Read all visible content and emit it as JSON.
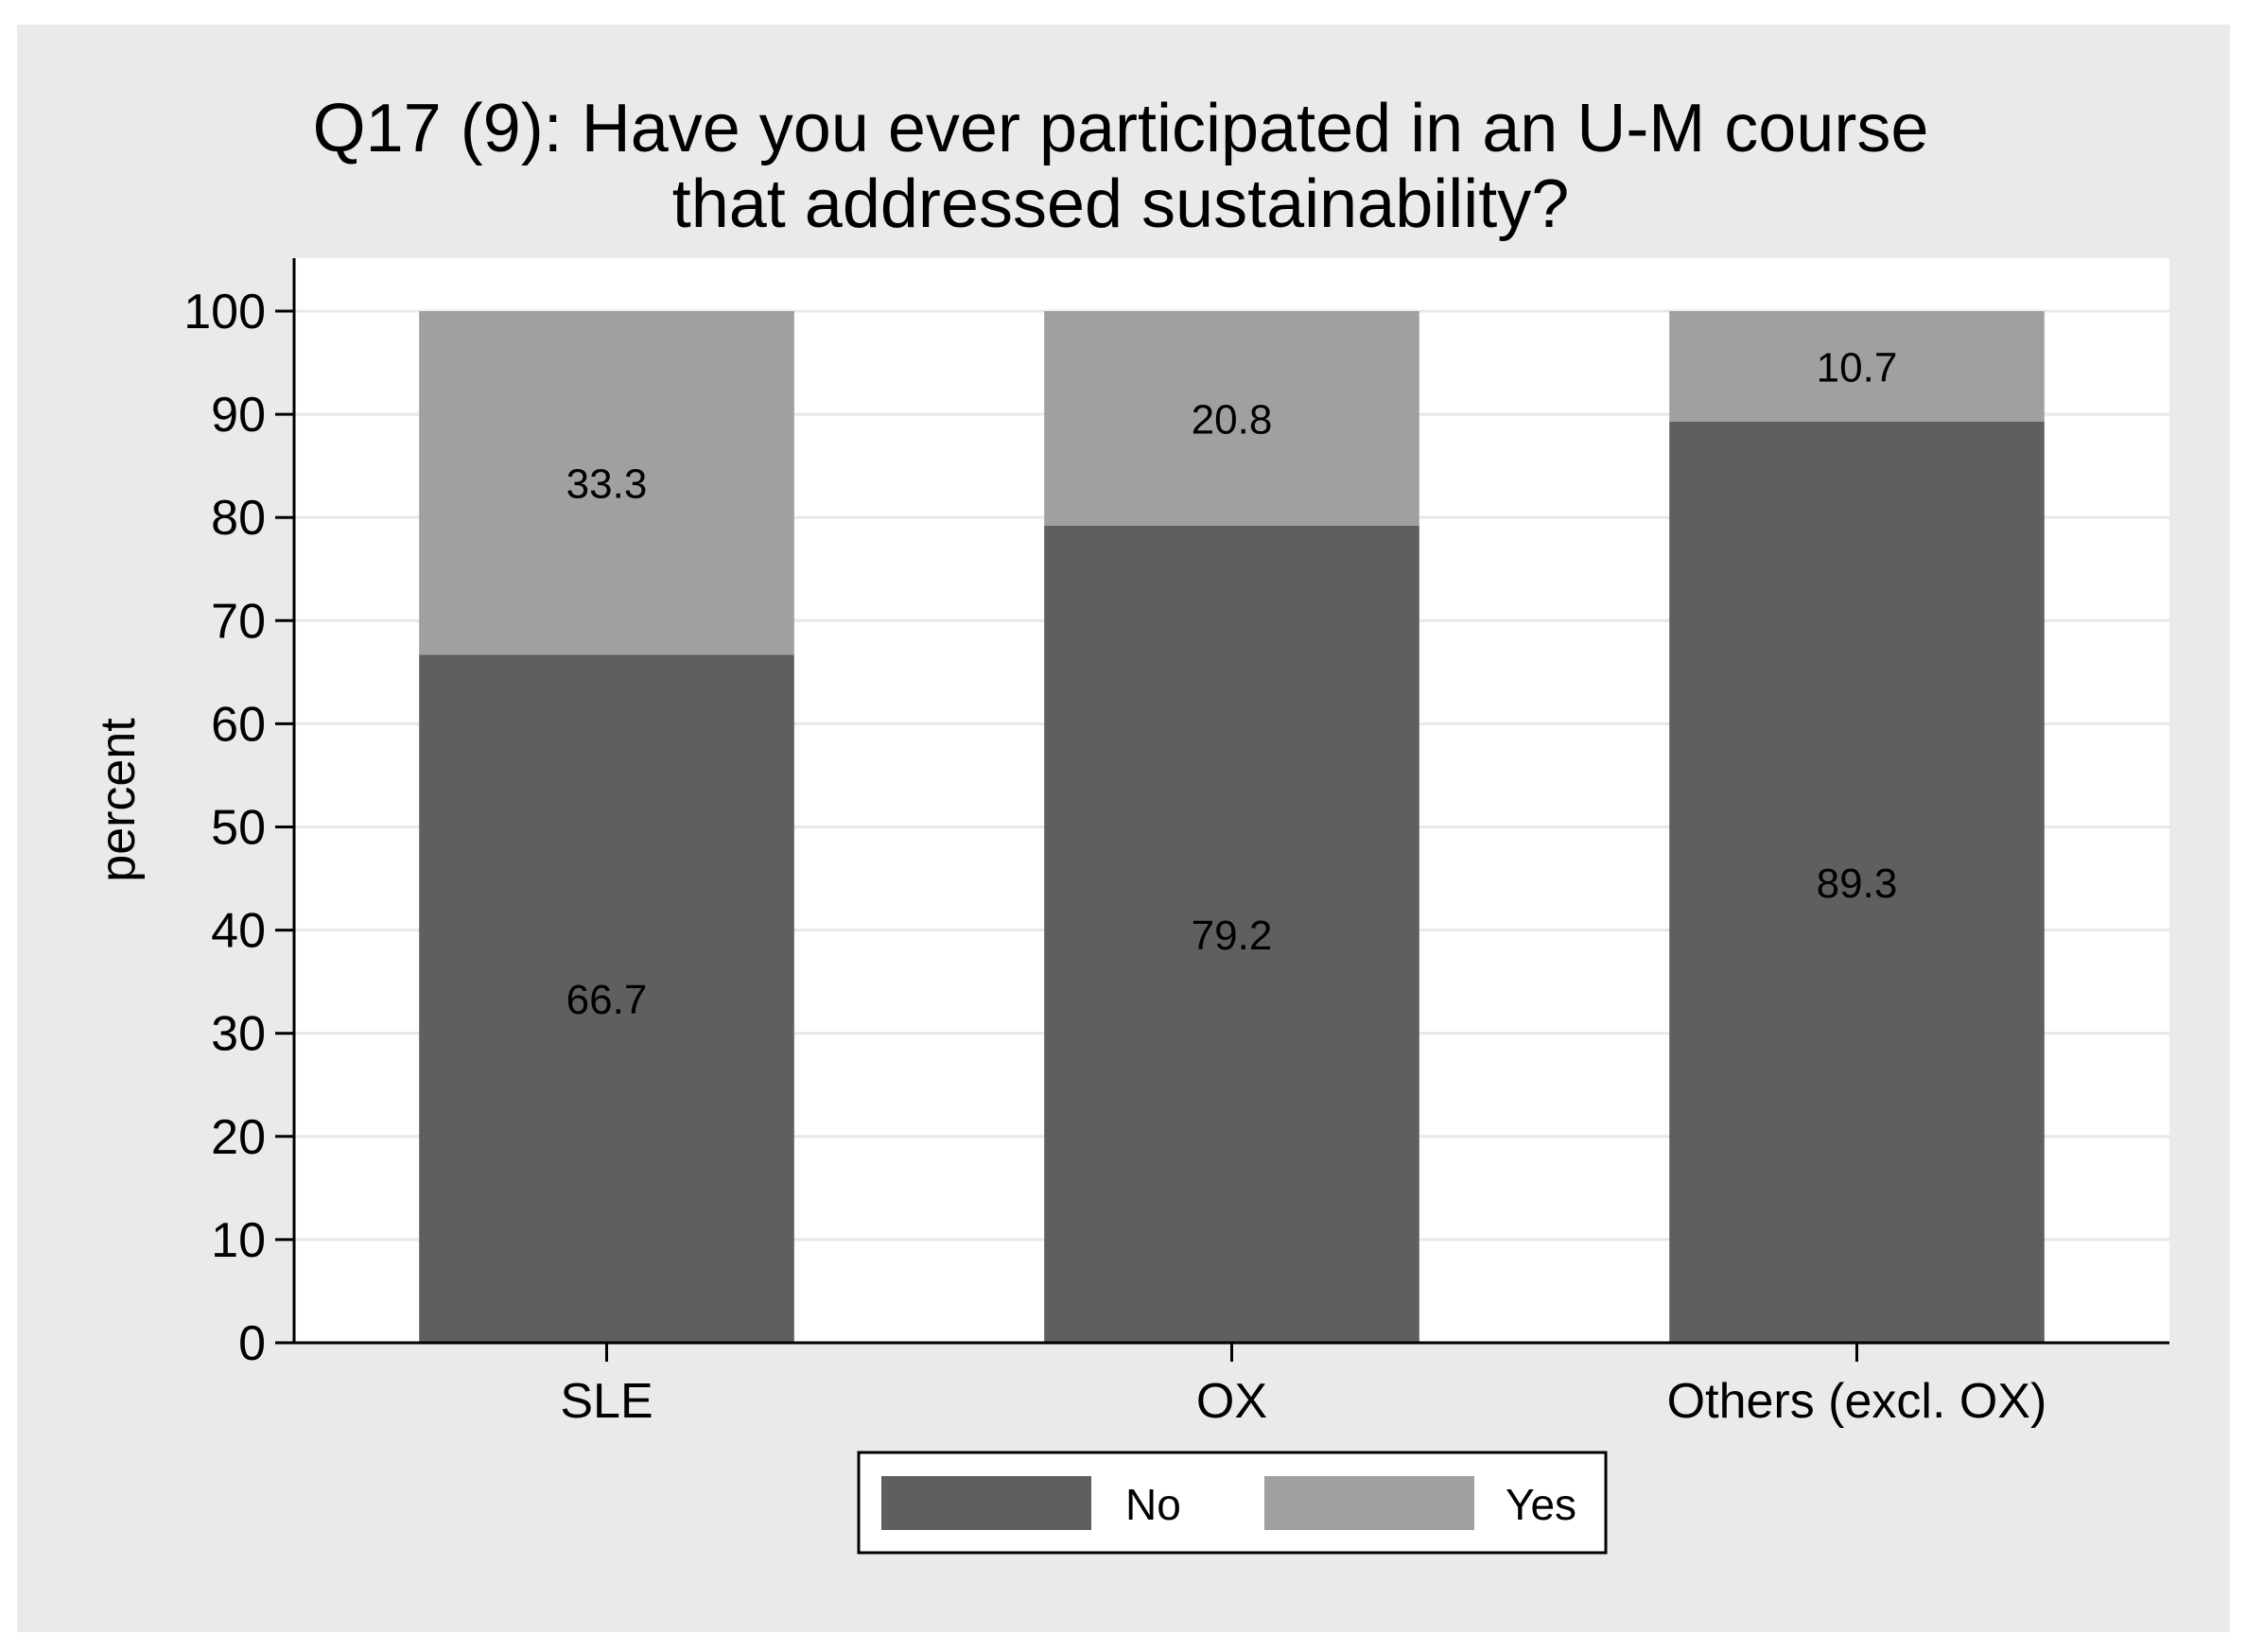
{
  "chart_data": {
    "type": "bar",
    "stacked": true,
    "percent": true,
    "title_lines": [
      "Q17 (9): Have you ever participated in an U-M course",
      "that addressed sustainability?"
    ],
    "ylabel": "percent",
    "xlabel": "",
    "ylim": [
      0,
      100
    ],
    "yticks": [
      0,
      10,
      20,
      30,
      40,
      50,
      60,
      70,
      80,
      90,
      100
    ],
    "grid": true,
    "legend_position": "bottom",
    "categories": [
      "SLE",
      "OX",
      "Others (excl. OX)"
    ],
    "series": [
      {
        "name": "No",
        "values": [
          66.7,
          79.2,
          89.3
        ],
        "color": "#5f5f5f"
      },
      {
        "name": "Yes",
        "values": [
          33.3,
          20.8,
          10.7
        ],
        "color": "#a0a0a0"
      }
    ],
    "colors": {
      "background": "#eaeaea",
      "plot_background": "#ffffff",
      "grid": "#e8e8e8",
      "axis": "#000000"
    }
  }
}
